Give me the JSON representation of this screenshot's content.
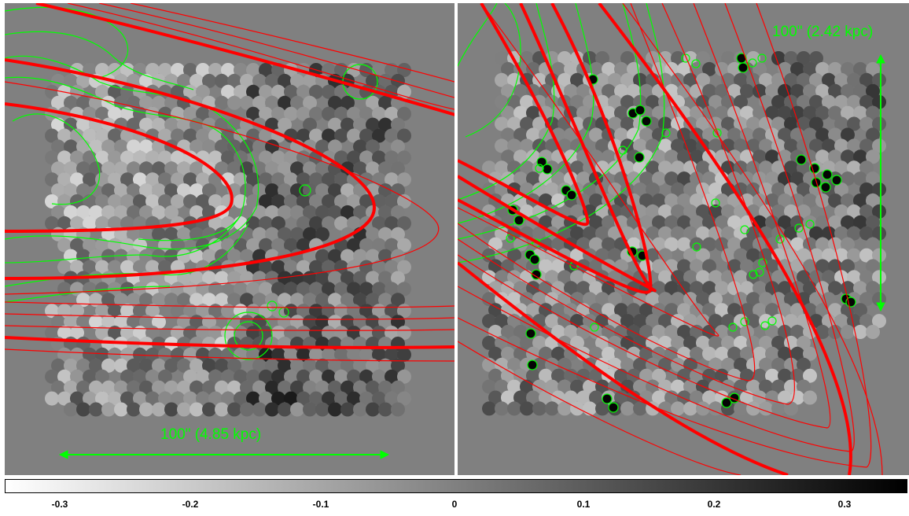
{
  "left_panel": {
    "scale_label": "100\" (4.85 kpc)"
  },
  "right_panel": {
    "scale_label": "100\" (2.42 kpc)"
  },
  "colorbar": {
    "ticks": [
      "-0.3",
      "-0.2",
      "-0.1",
      "0",
      "0.1",
      "0.2",
      "0.3"
    ],
    "range": [
      -0.35,
      0.35
    ]
  },
  "colors": {
    "background": "#808080",
    "contour_green": "#00ff00",
    "model_red": "#ff0000"
  }
}
